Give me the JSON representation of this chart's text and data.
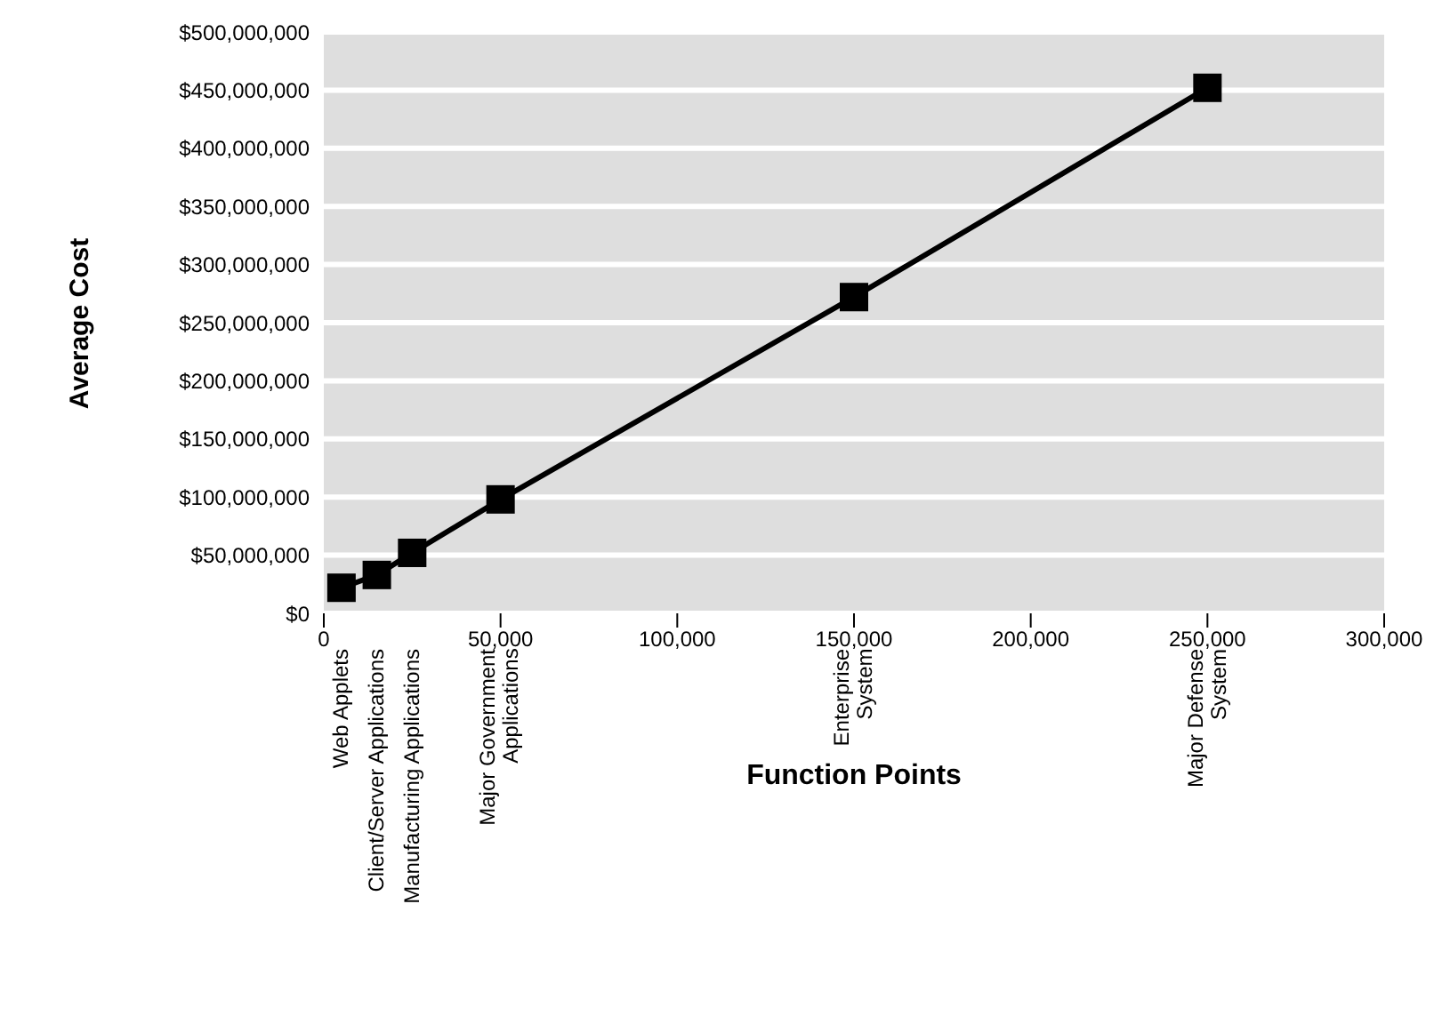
{
  "chart_data": {
    "type": "line",
    "xlabel": "Function Points",
    "ylabel": "Average Cost",
    "x": [
      5000,
      15000,
      25000,
      50000,
      150000,
      250000
    ],
    "series": [
      {
        "color": "#000000",
        "values": [
          22000000,
          33000000,
          52000000,
          98000000,
          272000000,
          452000000
        ]
      }
    ],
    "xlim": [
      0,
      300000
    ],
    "xticks": [
      {
        "value": 0,
        "label": "0"
      },
      {
        "value": 50000,
        "label": "50,000"
      },
      {
        "value": 100000,
        "label": "100,000"
      },
      {
        "value": 150000,
        "label": "150,000"
      },
      {
        "value": 200000,
        "label": "200,000"
      },
      {
        "value": 250000,
        "label": "250,000"
      },
      {
        "value": 300000,
        "label": "300,000"
      }
    ],
    "ylim": [
      0,
      500000000
    ],
    "yticks": [
      {
        "value": 0,
        "label": "$0"
      },
      {
        "value": 50000000,
        "label": "$50,000,000"
      },
      {
        "value": 100000000,
        "label": "$100,000,000"
      },
      {
        "value": 150000000,
        "label": "$150,000,000"
      },
      {
        "value": 200000000,
        "label": "$200,000,000"
      },
      {
        "value": 250000000,
        "label": "$250,000,000"
      },
      {
        "value": 300000000,
        "label": "$300,000,000"
      },
      {
        "value": 350000000,
        "label": "$350,000,000"
      },
      {
        "value": 400000000,
        "label": "$400,000,000"
      },
      {
        "value": 450000000,
        "label": "$450,000,000"
      },
      {
        "value": 500000000,
        "label": "$500,000,000"
      }
    ],
    "grid": "y",
    "marker": "square",
    "line_style": "solid",
    "annotations": [
      "Web Applets",
      "Client/Server Applications",
      "Manufacturing Applications",
      "Major Government\nApplications",
      "Enterprise\nSystem",
      "Major Defense\nSystem"
    ]
  }
}
